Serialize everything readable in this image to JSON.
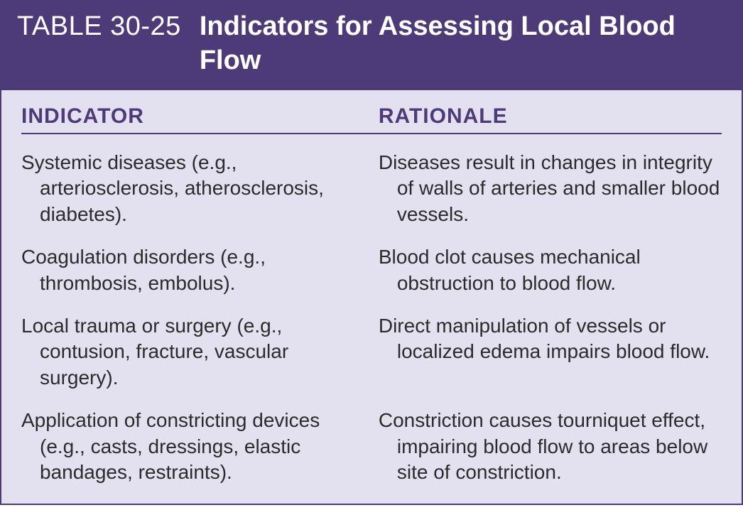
{
  "colors": {
    "header_bg": "#4d3a78",
    "header_text": "#ffffff",
    "body_bg": "#e3e0ef",
    "accent": "#4d3a78",
    "body_text": "#2b2b2b"
  },
  "table": {
    "number": "TABLE 30-25",
    "title": "Indicators for Assessing Local Blood Flow",
    "columns": [
      "INDICATOR",
      "RATIONALE"
    ],
    "rows": [
      {
        "indicator": "Systemic diseases (e.g., arteriosclerosis, atherosclerosis, diabetes).",
        "rationale": "Diseases result in changes in integrity of walls of arteries and smaller blood vessels."
      },
      {
        "indicator": "Coagulation disorders (e.g., thrombosis, embolus).",
        "rationale": "Blood clot causes mechanical obstruction to blood flow."
      },
      {
        "indicator": "Local trauma or surgery (e.g., contusion, fracture, vascular surgery).",
        "rationale": "Direct manipulation of vessels or localized edema impairs blood flow."
      },
      {
        "indicator": "Application of constricting devices (e.g., casts, dressings, elastic bandages, restraints).",
        "rationale": "Constriction causes tourniquet effect, impairing blood flow to areas below site of constriction."
      }
    ]
  }
}
